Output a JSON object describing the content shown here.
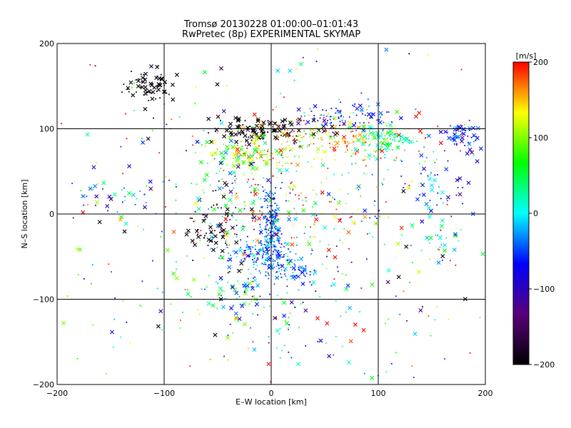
{
  "chart_data": {
    "type": "scatter",
    "title": "Tromsø 20130228 01:00:00–01:01:43",
    "subtitle": "RwPretec (8p) EXPERIMENTAL SKYMAP",
    "xlabel": "E–W location [km]",
    "ylabel": "N–S location [km]",
    "xlim": [
      -200,
      200
    ],
    "ylim": [
      -200,
      200
    ],
    "xticks": [
      -200,
      -100,
      0,
      100,
      200
    ],
    "yticks": [
      -200,
      -100,
      0,
      100,
      200
    ],
    "x_tick_labels": [
      "−200",
      "−100",
      "0",
      "100",
      "200"
    ],
    "y_tick_labels": [
      "−200",
      "−100",
      "0",
      "100",
      "200"
    ],
    "grid": true,
    "colorbar": {
      "label": "[m/s]",
      "range": [
        -200,
        200
      ],
      "ticks": [
        200,
        100,
        0,
        -100,
        -200
      ],
      "tick_labels": [
        "200",
        "100",
        "0",
        "−100",
        "−200"
      ],
      "colormap": [
        "#000000",
        "#5a007a",
        "#0000ff",
        "#00ffff",
        "#00ff00",
        "#ffff00",
        "#ff0000"
      ]
    },
    "marker_types": [
      "dot",
      "cross"
    ],
    "clusters": [
      {
        "cx": -115,
        "cy": 150,
        "sx": 12,
        "sy": 12,
        "n": 70,
        "v": -200,
        "vs": 10,
        "cross": 0.55
      },
      {
        "cx": -5,
        "cy": 100,
        "sx": 30,
        "sy": 8,
        "n": 110,
        "v": -200,
        "vs": 10,
        "cross": 0.6
      },
      {
        "cx": -22,
        "cy": 70,
        "sx": 22,
        "sy": 10,
        "n": 120,
        "v": 100,
        "vs": 45,
        "cross": 0.3
      },
      {
        "cx": 55,
        "cy": 90,
        "sx": 45,
        "sy": 15,
        "n": 220,
        "v": 150,
        "vs": 45,
        "cross": 0.15
      },
      {
        "cx": 75,
        "cy": 115,
        "sx": 22,
        "sy": 8,
        "n": 90,
        "v": -60,
        "vs": 25,
        "cross": 0.25
      },
      {
        "cx": 108,
        "cy": 88,
        "sx": 15,
        "sy": 10,
        "n": 90,
        "v": 30,
        "vs": 30,
        "cross": 0.3
      },
      {
        "cx": 180,
        "cy": 92,
        "sx": 12,
        "sy": 8,
        "n": 60,
        "v": -60,
        "vs": 25,
        "cross": 0.55
      },
      {
        "cx": 0,
        "cy": -15,
        "sx": 5,
        "sy": 22,
        "n": 200,
        "v": -50,
        "vs": 20,
        "cross": 0.08
      },
      {
        "cx": -8,
        "cy": -48,
        "sx": 16,
        "sy": 10,
        "n": 160,
        "v": -45,
        "vs": 30,
        "cross": 0.1
      },
      {
        "cx": 20,
        "cy": -70,
        "sx": 12,
        "sy": 10,
        "n": 60,
        "v": -50,
        "vs": 25,
        "cross": 0.2
      },
      {
        "cx": -55,
        "cy": -20,
        "sx": 15,
        "sy": 20,
        "n": 70,
        "v": -200,
        "vs": 10,
        "cross": 0.35
      },
      {
        "cx": -35,
        "cy": -90,
        "sx": 15,
        "sy": 12,
        "n": 50,
        "v": 0,
        "vs": 60,
        "cross": 0.3
      },
      {
        "cx": -30,
        "cy": 10,
        "sx": 25,
        "sy": 30,
        "n": 80,
        "v": 0,
        "vs": 120,
        "cross": 0.25
      },
      {
        "cx": 40,
        "cy": 10,
        "sx": 45,
        "sy": 30,
        "n": 120,
        "v": 80,
        "vs": 100,
        "cross": 0.15
      },
      {
        "cx": 10,
        "cy": -130,
        "sx": 35,
        "sy": 25,
        "n": 50,
        "v": 0,
        "vs": 100,
        "cross": 0.3
      },
      {
        "cx": -150,
        "cy": 20,
        "sx": 20,
        "sy": 15,
        "n": 30,
        "v": -30,
        "vs": 50,
        "cross": 0.5
      },
      {
        "cx": 155,
        "cy": 30,
        "sx": 15,
        "sy": 20,
        "n": 40,
        "v": -60,
        "vs": 40,
        "cross": 0.5
      },
      {
        "cx": 160,
        "cy": -30,
        "sx": 12,
        "sy": 15,
        "n": 30,
        "v": 0,
        "vs": 60,
        "cross": 0.5
      },
      {
        "cx": 0,
        "cy": 0,
        "sx": 110,
        "sy": 110,
        "n": 350,
        "v": 60,
        "vs": 130,
        "cross": 0.25
      },
      {
        "cx": 0,
        "cy": 0,
        "sx": 200,
        "sy": 200,
        "n": 100,
        "v": 0,
        "vs": 160,
        "cross": 0.5,
        "uniform": true
      }
    ]
  }
}
